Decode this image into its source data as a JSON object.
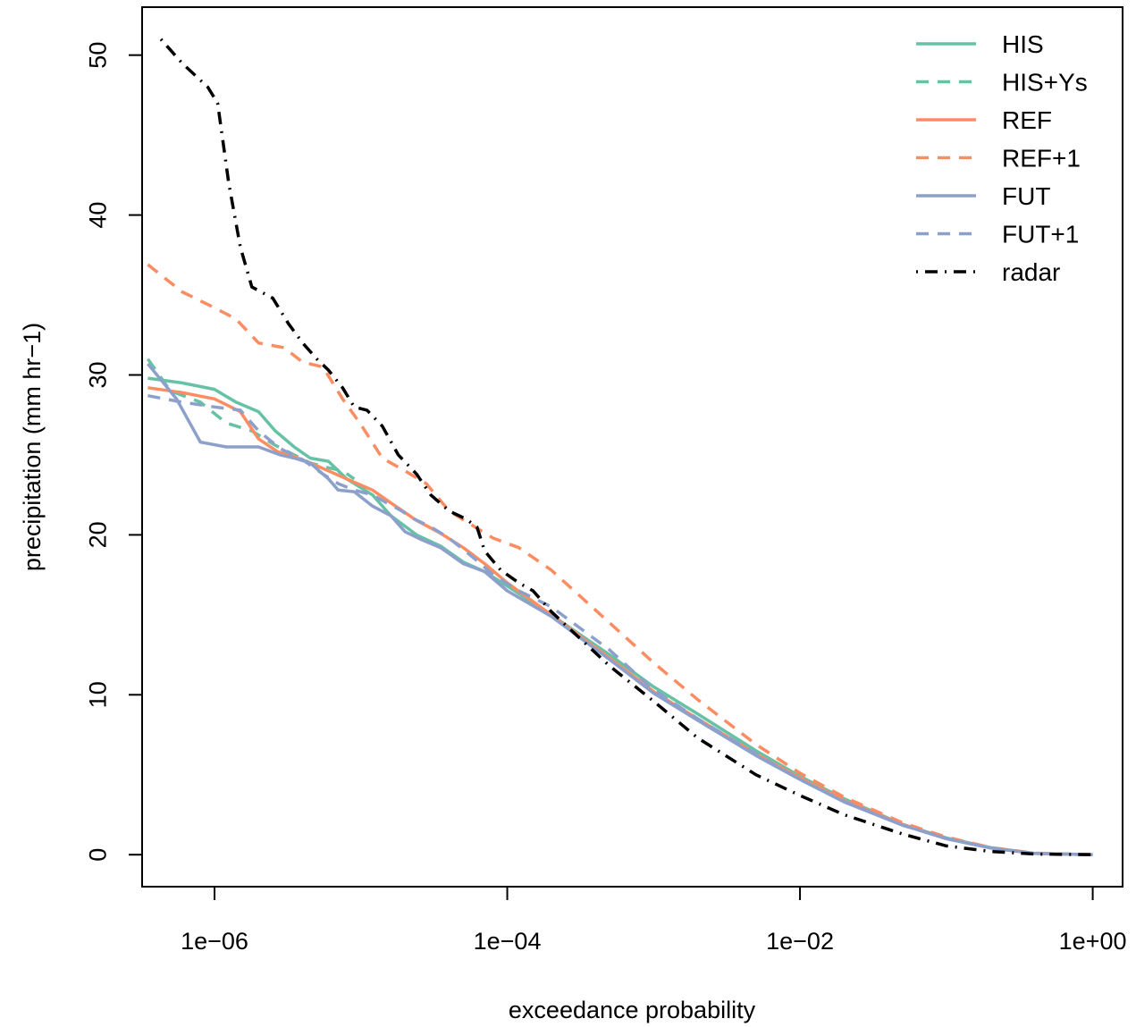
{
  "chart_data": {
    "type": "line",
    "title": "",
    "xlabel": "exceedance probability",
    "ylabel": "precipitation (mm hr−1)",
    "xscale": "log",
    "xlim": [
      3.2e-07,
      1.6
    ],
    "ylim": [
      -2,
      53
    ],
    "xticks": [
      1e-06,
      0.0001,
      0.01,
      1
    ],
    "xtick_labels": [
      "1e−06",
      "1e−04",
      "1e−02",
      "1e+00"
    ],
    "yticks": [
      0,
      10,
      20,
      30,
      40,
      50
    ],
    "ytick_labels": [
      "0",
      "10",
      "20",
      "30",
      "40",
      "50"
    ],
    "grid": false,
    "legend_position": "top-right",
    "series": [
      {
        "name": "HIS",
        "color": "#66c2a5",
        "dash": "solid",
        "points": [
          [
            3.5e-07,
            29.8
          ],
          [
            6e-07,
            29.5
          ],
          [
            1e-06,
            29.1
          ],
          [
            1.4e-06,
            28.3
          ],
          [
            2e-06,
            27.7
          ],
          [
            2.6e-06,
            26.5
          ],
          [
            3.5e-06,
            25.5
          ],
          [
            4.5e-06,
            24.8
          ],
          [
            6e-06,
            24.6
          ],
          [
            8e-06,
            23.5
          ],
          [
            1.2e-05,
            22.5
          ],
          [
            1.6e-05,
            21.2
          ],
          [
            2.4e-05,
            20.0
          ],
          [
            3.5e-05,
            19.3
          ],
          [
            5e-05,
            18.3
          ],
          [
            7e-05,
            17.7
          ],
          [
            0.0001,
            16.8
          ],
          [
            0.0002,
            15.0
          ],
          [
            0.0005,
            12.5
          ],
          [
            0.001,
            10.5
          ],
          [
            0.002,
            8.8
          ],
          [
            0.005,
            6.5
          ],
          [
            0.01,
            4.9
          ],
          [
            0.02,
            3.5
          ],
          [
            0.05,
            1.9
          ],
          [
            0.1,
            1.05
          ],
          [
            0.2,
            0.45
          ],
          [
            0.4,
            0.08
          ],
          [
            1,
            0
          ]
        ]
      },
      {
        "name": "HIS+Ys",
        "color": "#66c2a5",
        "dash": "dashed",
        "points": [
          [
            3.5e-07,
            31.0
          ],
          [
            5e-07,
            29.0
          ],
          [
            8e-07,
            28.3
          ],
          [
            1.2e-06,
            27.0
          ],
          [
            1.8e-06,
            26.5
          ],
          [
            2.6e-06,
            25.6
          ],
          [
            3.5e-06,
            25.0
          ],
          [
            4.5e-06,
            24.5
          ],
          [
            6e-06,
            24.2
          ],
          [
            7.5e-06,
            24.0
          ],
          [
            9e-06,
            23.5
          ]
        ]
      },
      {
        "name": "REF",
        "color": "#fc8d62",
        "dash": "solid",
        "points": [
          [
            3.5e-07,
            29.2
          ],
          [
            6e-07,
            28.9
          ],
          [
            1e-06,
            28.5
          ],
          [
            1.5e-06,
            27.7
          ],
          [
            2e-06,
            26.0
          ],
          [
            2.7e-06,
            25.2
          ],
          [
            3.5e-06,
            24.9
          ],
          [
            4.5e-06,
            24.5
          ],
          [
            6e-06,
            24.0
          ],
          [
            8e-06,
            23.5
          ],
          [
            1.2e-05,
            22.8
          ],
          [
            1.6e-05,
            22.0
          ],
          [
            2.4e-05,
            20.9
          ],
          [
            3.5e-05,
            20.1
          ],
          [
            5e-05,
            19.2
          ],
          [
            7e-05,
            18.2
          ],
          [
            0.0001,
            17.0
          ],
          [
            0.0002,
            15.0
          ],
          [
            0.0005,
            12.3
          ],
          [
            0.001,
            10.2
          ],
          [
            0.002,
            8.5
          ],
          [
            0.005,
            6.3
          ],
          [
            0.01,
            4.8
          ],
          [
            0.02,
            3.4
          ],
          [
            0.05,
            1.9
          ],
          [
            0.1,
            1.0
          ],
          [
            0.2,
            0.42
          ],
          [
            0.4,
            0.08
          ],
          [
            1,
            0
          ]
        ]
      },
      {
        "name": "REF+1",
        "color": "#fc8d62",
        "dash": "dashed",
        "points": [
          [
            3.5e-07,
            36.9
          ],
          [
            6e-07,
            35.2
          ],
          [
            1e-06,
            34.2
          ],
          [
            1.4e-06,
            33.5
          ],
          [
            2e-06,
            32.0
          ],
          [
            3e-06,
            31.7
          ],
          [
            4e-06,
            30.8
          ],
          [
            5.5e-06,
            30.5
          ],
          [
            7.5e-06,
            28.5
          ],
          [
            1e-05,
            26.9
          ],
          [
            1.4e-05,
            24.8
          ],
          [
            2e-05,
            24.0
          ],
          [
            2.8e-05,
            23.2
          ],
          [
            4e-05,
            21.5
          ],
          [
            6e-05,
            20.5
          ],
          [
            8e-05,
            19.8
          ],
          [
            0.00012,
            19.2
          ],
          [
            0.0002,
            17.8
          ],
          [
            0.0005,
            14.5
          ],
          [
            0.001,
            12.0
          ],
          [
            0.002,
            9.7
          ],
          [
            0.005,
            6.9
          ],
          [
            0.01,
            5.1
          ],
          [
            0.02,
            3.6
          ],
          [
            0.05,
            2.0
          ],
          [
            0.1,
            1.1
          ],
          [
            0.2,
            0.45
          ],
          [
            0.4,
            0.1
          ],
          [
            1,
            0
          ]
        ]
      },
      {
        "name": "FUT",
        "color": "#8da0cb",
        "dash": "solid",
        "points": [
          [
            3.5e-07,
            30.7
          ],
          [
            5.5e-07,
            28.5
          ],
          [
            8e-07,
            25.8
          ],
          [
            1.2e-06,
            25.5
          ],
          [
            2e-06,
            25.5
          ],
          [
            2.8e-06,
            25.0
          ],
          [
            3.5e-06,
            24.8
          ],
          [
            4.5e-06,
            24.5
          ],
          [
            6e-06,
            23.5
          ],
          [
            7e-06,
            22.8
          ],
          [
            9e-06,
            22.7
          ],
          [
            1.2e-05,
            21.8
          ],
          [
            1.6e-05,
            21.2
          ],
          [
            2e-05,
            20.2
          ],
          [
            2.6e-05,
            19.7
          ],
          [
            3.5e-05,
            19.2
          ],
          [
            5e-05,
            18.2
          ],
          [
            7e-05,
            17.7
          ],
          [
            0.0001,
            16.5
          ],
          [
            0.0002,
            14.9
          ],
          [
            0.0005,
            12.2
          ],
          [
            0.001,
            10.1
          ],
          [
            0.002,
            8.4
          ],
          [
            0.005,
            6.2
          ],
          [
            0.01,
            4.7
          ],
          [
            0.02,
            3.3
          ],
          [
            0.05,
            1.85
          ],
          [
            0.1,
            1.0
          ],
          [
            0.2,
            0.42
          ],
          [
            0.4,
            0.08
          ],
          [
            1,
            0
          ]
        ]
      },
      {
        "name": "FUT+1",
        "color": "#8da0cb",
        "dash": "dashed",
        "points": [
          [
            3.5e-07,
            28.7
          ],
          [
            6e-07,
            28.3
          ],
          [
            1e-06,
            28.0
          ],
          [
            1.5e-06,
            27.8
          ],
          [
            2e-06,
            26.5
          ],
          [
            2.8e-06,
            25.4
          ],
          [
            4e-06,
            24.7
          ],
          [
            5.5e-06,
            23.8
          ],
          [
            7e-06,
            23.2
          ],
          [
            9e-06,
            22.8
          ],
          [
            1.2e-05,
            22.5
          ],
          [
            1.5e-05,
            22.0
          ],
          [
            1.9e-05,
            21.5
          ],
          [
            2.3e-05,
            21.0
          ],
          [
            3e-05,
            20.5
          ],
          [
            4e-05,
            19.8
          ],
          [
            6e-05,
            18.5
          ],
          [
            8e-05,
            17.5
          ],
          [
            0.00012,
            16.5
          ],
          [
            0.0002,
            15.5
          ],
          [
            0.0005,
            12.8
          ],
          [
            0.001,
            10.3
          ],
          [
            0.002,
            8.5
          ],
          [
            0.005,
            6.3
          ],
          [
            0.01,
            4.7
          ],
          [
            0.02,
            3.35
          ],
          [
            0.05,
            1.85
          ],
          [
            0.1,
            1.0
          ],
          [
            0.2,
            0.42
          ],
          [
            0.4,
            0.08
          ],
          [
            1,
            0
          ]
        ]
      },
      {
        "name": "radar",
        "color": "#000000",
        "dash": "dotdash",
        "points": [
          [
            4.3e-07,
            51.0
          ],
          [
            6e-07,
            49.5
          ],
          [
            9e-07,
            48.0
          ],
          [
            1.05e-06,
            47.0
          ],
          [
            1.25e-06,
            42.0
          ],
          [
            1.5e-06,
            38.0
          ],
          [
            1.8e-06,
            35.5
          ],
          [
            2.5e-06,
            34.8
          ],
          [
            3.2e-06,
            33.2
          ],
          [
            4e-06,
            32.0
          ],
          [
            5e-06,
            31.0
          ],
          [
            6e-06,
            30.3
          ],
          [
            7.5e-06,
            29.2
          ],
          [
            9e-06,
            28.0
          ],
          [
            1.1e-05,
            27.8
          ],
          [
            1.4e-05,
            26.8
          ],
          [
            1.8e-05,
            25.0
          ],
          [
            2.4e-05,
            23.8
          ],
          [
            3e-05,
            22.5
          ],
          [
            4e-05,
            21.5
          ],
          [
            5.2e-05,
            21.0
          ],
          [
            6.2e-05,
            20.5
          ],
          [
            7e-05,
            19.0
          ],
          [
            9e-05,
            17.8
          ],
          [
            0.00012,
            17.0
          ],
          [
            0.00015,
            16.5
          ],
          [
            0.0002,
            15.2
          ],
          [
            0.0005,
            11.8
          ],
          [
            0.001,
            9.6
          ],
          [
            0.002,
            7.3
          ],
          [
            0.005,
            5.0
          ],
          [
            0.01,
            3.7
          ],
          [
            0.02,
            2.5
          ],
          [
            0.05,
            1.3
          ],
          [
            0.1,
            0.55
          ],
          [
            0.2,
            0.2
          ],
          [
            0.4,
            0.04
          ],
          [
            1,
            0
          ]
        ]
      }
    ]
  }
}
